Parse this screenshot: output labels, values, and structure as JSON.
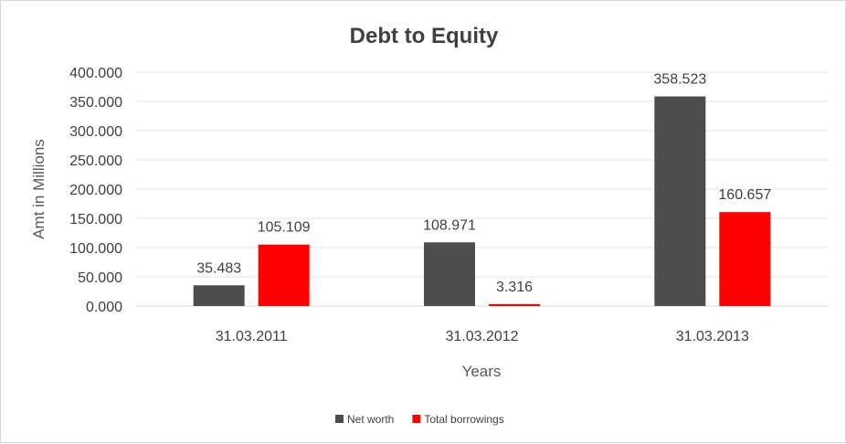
{
  "chart_data": {
    "type": "bar",
    "title": "Debt to Equity",
    "xlabel": "Years",
    "ylabel": "Amt in Millions",
    "categories": [
      "31.03.2011",
      "31.03.2012",
      "31.03.2013"
    ],
    "series": [
      {
        "name": "Net worth",
        "color": "#4d4d4d",
        "values": [
          35.483,
          108.971,
          358.523
        ],
        "labels": [
          "35.483",
          "108.971",
          "358.523"
        ]
      },
      {
        "name": "Total borrowings",
        "color": "#ff0000",
        "values": [
          105.109,
          3.316,
          160.657
        ],
        "labels": [
          "105.109",
          "3.316",
          "160.657"
        ]
      }
    ],
    "ylim": [
      0,
      400
    ],
    "yticks": [
      0,
      50,
      100,
      150,
      200,
      250,
      300,
      350,
      400
    ],
    "ytick_labels": [
      "0.000",
      "50.000",
      "100.000",
      "150.000",
      "200.000",
      "250.000",
      "300.000",
      "350.000",
      "400.000"
    ],
    "grid": true,
    "legend": "bottom"
  }
}
